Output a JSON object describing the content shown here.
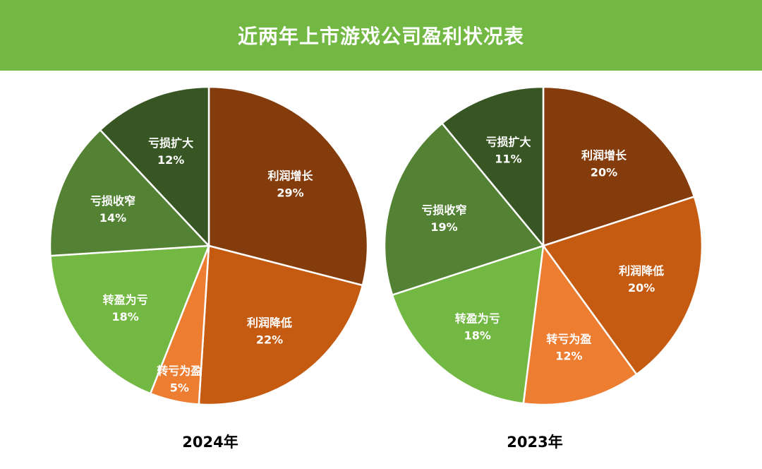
{
  "title": "近两年上市游戏公司盈利状况表",
  "colors": {
    "header": "#72B843"
  },
  "chart_data": [
    {
      "type": "pie",
      "title": "2024年",
      "categories": [
        "利润增长",
        "利润降低",
        "转亏为盈",
        "转盈为亏",
        "亏损收窄",
        "亏损扩大"
      ],
      "values": [
        29,
        22,
        5,
        18,
        14,
        12
      ],
      "labels": [
        "29%",
        "22%",
        "5%",
        "18%",
        "14%",
        "12%"
      ],
      "colors": [
        "#843C0C",
        "#C55A11",
        "#ED7D31",
        "#72B843",
        "#548235",
        "#375623"
      ]
    },
    {
      "type": "pie",
      "title": "2023年",
      "categories": [
        "利润增长",
        "利润降低",
        "转亏为盈",
        "转盈为亏",
        "亏损收窄",
        "亏损扩大"
      ],
      "values": [
        20,
        20,
        12,
        18,
        19,
        11
      ],
      "labels": [
        "20%",
        "20%",
        "12%",
        "18%",
        "19%",
        "11%"
      ],
      "colors": [
        "#843C0C",
        "#C55A11",
        "#ED7D31",
        "#72B843",
        "#548235",
        "#375623"
      ]
    }
  ]
}
